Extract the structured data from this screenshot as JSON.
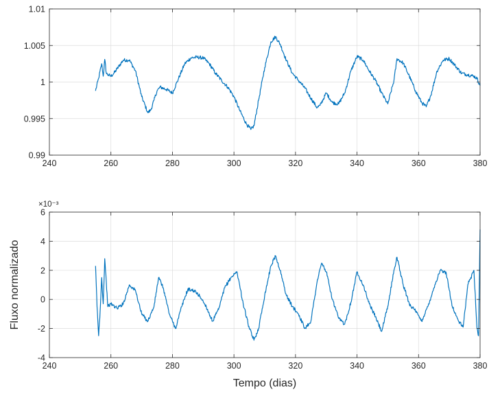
{
  "chart_data": [
    {
      "type": "line",
      "title": "",
      "xlabel": "",
      "ylabel": "",
      "xlim": [
        240,
        380
      ],
      "ylim": [
        0.99,
        1.01
      ],
      "xticks": [
        240,
        260,
        280,
        300,
        320,
        340,
        360,
        380
      ],
      "xtick_labels": [
        "240",
        "260",
        "280",
        "300",
        "320",
        "340",
        "360",
        "380"
      ],
      "yticks": [
        0.99,
        0.995,
        1.0,
        1.005,
        1.01
      ],
      "ytick_labels": [
        "0.99",
        "0.995",
        "1",
        "1.005",
        "1.01"
      ],
      "grid": true,
      "color": "#0072BD",
      "series": [
        {
          "x": [
            255.0,
            256.0,
            257.0,
            257.5,
            258.0,
            258.5,
            259.0,
            260.0,
            261.0,
            262.0,
            264.0,
            266.0,
            268.0,
            270.0,
            272.0,
            273.0,
            274.0,
            275.0,
            276.0,
            278.0,
            280.0,
            282.0,
            284.0,
            286.0,
            288.0,
            290.0,
            292.0,
            294.0,
            296.0,
            298.0,
            300.0,
            302.0,
            304.0,
            305.5,
            306.5,
            308.0,
            310.0,
            312.0,
            313.5,
            315.0,
            317.0,
            319.0,
            321.0,
            323.0,
            325.0,
            327.0,
            328.0,
            330.0,
            332.0,
            334.0,
            336.0,
            338.0,
            340.0,
            342.0,
            344.0,
            346.0,
            348.0,
            350.0,
            352.0,
            353.0,
            355.0,
            357.0,
            359.0,
            361.0,
            362.5,
            364.0,
            366.0,
            368.0,
            370.0,
            372.0,
            374.0,
            376.0,
            378.0,
            379.0,
            380.0
          ],
          "y": [
            0.9988,
            1.0005,
            1.0025,
            1.0008,
            1.0031,
            1.0012,
            1.001,
            1.0008,
            1.0012,
            1.0018,
            1.003,
            1.003,
            1.0015,
            0.998,
            0.9958,
            0.9962,
            0.9975,
            0.9988,
            0.9993,
            0.999,
            0.9985,
            1.0005,
            1.0025,
            1.0033,
            1.0034,
            1.0033,
            1.0025,
            1.0012,
            1.0002,
            0.9993,
            0.998,
            0.996,
            0.9943,
            0.9935,
            0.994,
            0.9975,
            1.002,
            1.0055,
            1.0062,
            1.0052,
            1.003,
            1.0012,
            1.0002,
            0.9992,
            0.9978,
            0.9965,
            0.9968,
            0.9985,
            0.9972,
            0.997,
            0.9985,
            1.0015,
            1.0035,
            1.003,
            1.0015,
            1.0002,
            0.9985,
            0.997,
            1.0002,
            1.0032,
            1.0026,
            1.0008,
            0.9988,
            0.9972,
            0.9966,
            0.9982,
            1.0015,
            1.003,
            1.0032,
            1.0022,
            1.0012,
            1.001,
            1.0008,
            1.0005,
            0.9995
          ]
        }
      ]
    },
    {
      "type": "line",
      "title": "",
      "xlabel": "Tempo (dias)",
      "ylabel": "Fluxo normalizado",
      "exponent_label": "×10⁻³",
      "xlim": [
        240,
        380
      ],
      "ylim": [
        -4,
        6
      ],
      "xticks": [
        240,
        260,
        280,
        300,
        320,
        340,
        360,
        380
      ],
      "xtick_labels": [
        "240",
        "260",
        "280",
        "300",
        "320",
        "340",
        "360",
        "380"
      ],
      "yticks": [
        -4,
        -2,
        0,
        2,
        4,
        6
      ],
      "ytick_labels": [
        "-4",
        "-2",
        "0",
        "2",
        "4",
        "6"
      ],
      "grid": true,
      "color": "#0072BD",
      "series": [
        {
          "x": [
            255.0,
            255.5,
            256.0,
            256.5,
            257.0,
            257.5,
            258.0,
            258.5,
            259.0,
            260.0,
            262.0,
            264.0,
            266.0,
            268.0,
            270.0,
            272.0,
            274.0,
            275.5,
            277.0,
            279.0,
            281.0,
            283.0,
            285.0,
            287.0,
            289.0,
            291.0,
            293.0,
            295.0,
            297.0,
            299.0,
            301.0,
            303.0,
            305.0,
            306.5,
            308.0,
            310.0,
            312.0,
            313.5,
            315.0,
            317.0,
            319.0,
            321.0,
            323.0,
            325.0,
            327.0,
            328.5,
            330.0,
            332.0,
            334.0,
            336.0,
            338.0,
            340.0,
            342.0,
            344.0,
            346.0,
            348.0,
            350.0,
            352.0,
            353.0,
            355.0,
            357.0,
            359.0,
            361.0,
            363.0,
            365.0,
            367.0,
            369.0,
            371.0,
            373.0,
            374.5,
            376.0,
            378.0,
            379.0,
            379.5,
            380.0
          ],
          "y": [
            2.3,
            -0.5,
            -2.5,
            -0.8,
            1.5,
            -0.3,
            2.8,
            1.2,
            -0.5,
            -0.3,
            -0.6,
            -0.3,
            1.0,
            0.6,
            -1.0,
            -1.5,
            -0.5,
            1.5,
            0.8,
            -1.0,
            -2.0,
            -0.5,
            0.7,
            0.6,
            0.2,
            -0.5,
            -1.5,
            -0.7,
            0.8,
            1.5,
            1.9,
            -0.3,
            -2.0,
            -2.8,
            -2.0,
            0.3,
            2.3,
            3.0,
            2.0,
            0.3,
            -0.5,
            -1.0,
            -2.0,
            -1.5,
            1.2,
            2.5,
            1.9,
            0.0,
            -1.3,
            -1.7,
            -0.2,
            1.9,
            1.0,
            -0.3,
            -1.2,
            -2.2,
            -0.5,
            2.0,
            2.9,
            1.0,
            -0.3,
            -0.8,
            -1.5,
            -0.5,
            0.8,
            2.0,
            1.8,
            -0.5,
            -1.5,
            -1.9,
            1.0,
            2.0,
            -2.0,
            -2.5,
            4.8
          ]
        }
      ]
    }
  ]
}
